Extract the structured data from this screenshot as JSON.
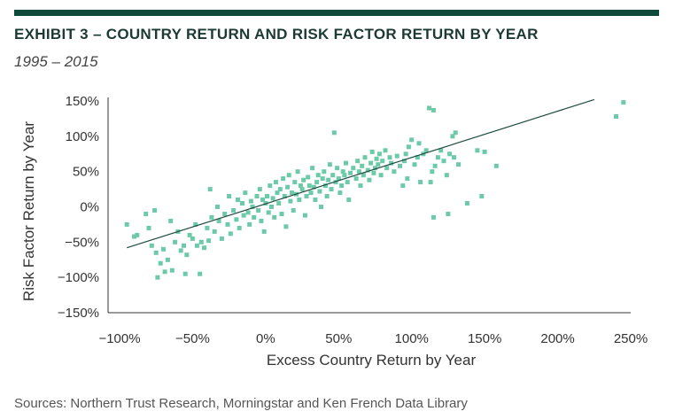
{
  "header": {
    "title": "EXHIBIT 3 – COUNTRY RETURN AND RISK FACTOR RETURN BY YEAR",
    "subtitle": "1995 – 2015"
  },
  "footer": {
    "source": "Sources: Northern Trust Research, Morningstar and Ken French Data Library"
  },
  "colors": {
    "accent_bar": "#0d4a3a",
    "points": "#6ccaa8",
    "trend_line": "#1f4a40",
    "axis": "#333333"
  },
  "chart_data": {
    "type": "scatter",
    "title": "EXHIBIT 3 – COUNTRY RETURN AND RISK FACTOR RETURN BY YEAR",
    "subtitle": "1995 – 2015",
    "xlabel": "Excess Country Return by Year",
    "ylabel": "Risk Factor Return by Year",
    "xlim": [
      -100,
      250
    ],
    "ylim": [
      -150,
      150
    ],
    "x_ticks": [
      -100,
      -50,
      0,
      50,
      100,
      150,
      200,
      250
    ],
    "x_tick_labels": [
      "−100%",
      "−50%",
      "0%",
      "50%",
      "100%",
      "150%",
      "200%",
      "250%"
    ],
    "y_ticks": [
      -150,
      -100,
      -50,
      0,
      50,
      100,
      150
    ],
    "y_tick_labels": [
      "−150%",
      "−100%",
      "−50%",
      "0%",
      "50%",
      "100%",
      "150%"
    ],
    "grid": false,
    "trend_line": {
      "x": [
        -95,
        225
      ],
      "y": [
        -58,
        152
      ]
    },
    "points": [
      [
        -95,
        -25
      ],
      [
        -90,
        -42
      ],
      [
        -88,
        -40
      ],
      [
        -82,
        -10
      ],
      [
        -80,
        -30
      ],
      [
        -78,
        -55
      ],
      [
        -76,
        -5
      ],
      [
        -75,
        -65
      ],
      [
        -74,
        -100
      ],
      [
        -72,
        -80
      ],
      [
        -70,
        -60
      ],
      [
        -69,
        -92
      ],
      [
        -67,
        -75
      ],
      [
        -65,
        -20
      ],
      [
        -64,
        -90
      ],
      [
        -62,
        -50
      ],
      [
        -60,
        -35
      ],
      [
        -58,
        -62
      ],
      [
        -56,
        -55
      ],
      [
        -55,
        -95
      ],
      [
        -54,
        -68
      ],
      [
        -52,
        -40
      ],
      [
        -50,
        -45
      ],
      [
        -48,
        -25
      ],
      [
        -47,
        -55
      ],
      [
        -45,
        -95
      ],
      [
        -44,
        -50
      ],
      [
        -42,
        -58
      ],
      [
        -40,
        -30
      ],
      [
        -39,
        -48
      ],
      [
        -38,
        25
      ],
      [
        -37,
        -15
      ],
      [
        -35,
        -35
      ],
      [
        -33,
        0
      ],
      [
        -32,
        -20
      ],
      [
        -30,
        -45
      ],
      [
        -28,
        -10
      ],
      [
        -26,
        -25
      ],
      [
        -25,
        15
      ],
      [
        -24,
        -38
      ],
      [
        -22,
        -5
      ],
      [
        -20,
        -18
      ],
      [
        -19,
        10
      ],
      [
        -18,
        -30
      ],
      [
        -16,
        5
      ],
      [
        -15,
        -12
      ],
      [
        -14,
        20
      ],
      [
        -12,
        -8
      ],
      [
        -11,
        -25
      ],
      [
        -10,
        8
      ],
      [
        -9,
        0
      ],
      [
        -8,
        -15
      ],
      [
        -6,
        15
      ],
      [
        -5,
        -5
      ],
      [
        -4,
        25
      ],
      [
        -3,
        -20
      ],
      [
        -2,
        10
      ],
      [
        -1,
        -35
      ],
      [
        0,
        5
      ],
      [
        1,
        15
      ],
      [
        2,
        -8
      ],
      [
        3,
        30
      ],
      [
        4,
        0
      ],
      [
        5,
        12
      ],
      [
        6,
        -15
      ],
      [
        7,
        35
      ],
      [
        8,
        20
      ],
      [
        9,
        5
      ],
      [
        10,
        25
      ],
      [
        11,
        -10
      ],
      [
        12,
        40
      ],
      [
        13,
        15
      ],
      [
        14,
        -28
      ],
      [
        15,
        28
      ],
      [
        16,
        45
      ],
      [
        17,
        8
      ],
      [
        18,
        20
      ],
      [
        19,
        -5
      ],
      [
        20,
        35
      ],
      [
        21,
        18
      ],
      [
        22,
        50
      ],
      [
        23,
        10
      ],
      [
        24,
        30
      ],
      [
        25,
        25
      ],
      [
        26,
        38
      ],
      [
        27,
        -12
      ],
      [
        28,
        15
      ],
      [
        29,
        42
      ],
      [
        30,
        30
      ],
      [
        31,
        20
      ],
      [
        32,
        55
      ],
      [
        33,
        28
      ],
      [
        34,
        10
      ],
      [
        35,
        35
      ],
      [
        36,
        45
      ],
      [
        37,
        22
      ],
      [
        38,
        0
      ],
      [
        39,
        40
      ],
      [
        40,
        50
      ],
      [
        41,
        30
      ],
      [
        42,
        15
      ],
      [
        43,
        38
      ],
      [
        44,
        60
      ],
      [
        45,
        25
      ],
      [
        46,
        45
      ],
      [
        47,
        105
      ],
      [
        48,
        35
      ],
      [
        49,
        55
      ],
      [
        50,
        40
      ],
      [
        51,
        20
      ],
      [
        52,
        30
      ],
      [
        53,
        50
      ],
      [
        54,
        45
      ],
      [
        55,
        62
      ],
      [
        56,
        35
      ],
      [
        57,
        10
      ],
      [
        58,
        48
      ],
      [
        60,
        55
      ],
      [
        62,
        40
      ],
      [
        63,
        65
      ],
      [
        64,
        50
      ],
      [
        65,
        30
      ],
      [
        66,
        58
      ],
      [
        67,
        45
      ],
      [
        68,
        70
      ],
      [
        70,
        52
      ],
      [
        71,
        38
      ],
      [
        72,
        62
      ],
      [
        73,
        78
      ],
      [
        74,
        48
      ],
      [
        75,
        55
      ],
      [
        76,
        68
      ],
      [
        77,
        60
      ],
      [
        78,
        75
      ],
      [
        79,
        45
      ],
      [
        80,
        65
      ],
      [
        82,
        80
      ],
      [
        83,
        55
      ],
      [
        85,
        70
      ],
      [
        86,
        62
      ],
      [
        88,
        50
      ],
      [
        90,
        72
      ],
      [
        92,
        58
      ],
      [
        94,
        30
      ],
      [
        95,
        65
      ],
      [
        96,
        75
      ],
      [
        97,
        40
      ],
      [
        98,
        85
      ],
      [
        100,
        95
      ],
      [
        102,
        60
      ],
      [
        104,
        70
      ],
      [
        105,
        90
      ],
      [
        106,
        35
      ],
      [
        108,
        75
      ],
      [
        110,
        80
      ],
      [
        112,
        140
      ],
      [
        113,
        35
      ],
      [
        114,
        50
      ],
      [
        115,
        137
      ],
      [
        115,
        -15
      ],
      [
        116,
        58
      ],
      [
        118,
        70
      ],
      [
        120,
        80
      ],
      [
        122,
        65
      ],
      [
        124,
        45
      ],
      [
        125,
        -10
      ],
      [
        126,
        75
      ],
      [
        128,
        100
      ],
      [
        129,
        70
      ],
      [
        130,
        105
      ],
      [
        132,
        60
      ],
      [
        138,
        5
      ],
      [
        145,
        80
      ],
      [
        148,
        15
      ],
      [
        150,
        78
      ],
      [
        158,
        58
      ],
      [
        240,
        128
      ],
      [
        245,
        148
      ]
    ]
  }
}
